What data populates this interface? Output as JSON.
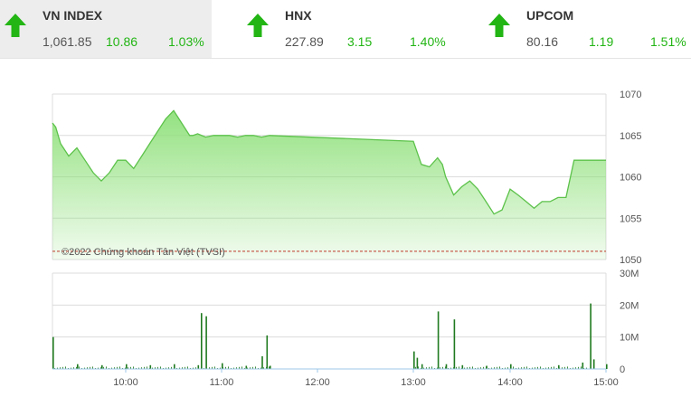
{
  "indices": [
    {
      "name": "VN INDEX",
      "price": "1,061.85",
      "change": "10.86",
      "percent": "1.03%"
    },
    {
      "name": "HNX",
      "price": "227.89",
      "change": "3.15",
      "percent": "1.40%"
    },
    {
      "name": "UPCOM",
      "price": "80.16",
      "change": "1.19",
      "percent": "1.51%"
    }
  ],
  "colors": {
    "up": "#22b514",
    "area_fill": "#8ee07a",
    "line": "#5cc24a",
    "reference": "#c0392b",
    "volume": "#1f7a1f"
  },
  "watermark": "©2022 Chứng khoán Tân Việt (TVSI)",
  "chart_data": [
    {
      "type": "area",
      "title": "",
      "x_ticks": [
        "10:00",
        "11:00",
        "12:00",
        "13:00",
        "14:00",
        "15:00"
      ],
      "y_ticks": [
        "1050",
        "1055",
        "1060",
        "1065",
        "1070"
      ],
      "ylim": [
        1050,
        1070
      ],
      "xlim": [
        "09:15",
        "15:00"
      ],
      "reference_value": 1051,
      "grid": true,
      "x": [
        "09:15",
        "09:17",
        "09:20",
        "09:25",
        "09:30",
        "09:35",
        "09:40",
        "09:45",
        "09:50",
        "09:55",
        "10:00",
        "10:05",
        "10:10",
        "10:15",
        "10:20",
        "10:25",
        "10:30",
        "10:35",
        "10:40",
        "10:42",
        "10:45",
        "10:50",
        "10:55",
        "11:00",
        "11:05",
        "11:10",
        "11:15",
        "11:20",
        "11:25",
        "11:30",
        "13:00",
        "13:05",
        "13:10",
        "13:15",
        "13:18",
        "13:20",
        "13:25",
        "13:30",
        "13:35",
        "13:40",
        "13:45",
        "13:50",
        "13:55",
        "14:00",
        "14:05",
        "14:10",
        "14:15",
        "14:20",
        "14:25",
        "14:30",
        "14:32",
        "14:35",
        "14:40",
        "14:45",
        "14:50",
        "14:55",
        "15:00"
      ],
      "values": [
        1066.5,
        1066.0,
        1064.0,
        1062.5,
        1063.5,
        1062.0,
        1060.5,
        1059.5,
        1060.5,
        1062.0,
        1062.0,
        1061.0,
        1062.5,
        1064.0,
        1065.5,
        1067.0,
        1068.0,
        1066.5,
        1065.0,
        1065.0,
        1065.2,
        1064.8,
        1065.0,
        1065.0,
        1065.0,
        1064.8,
        1065.0,
        1065.0,
        1064.8,
        1065.0,
        1064.3,
        1061.5,
        1061.2,
        1062.3,
        1061.5,
        1060.0,
        1057.8,
        1058.8,
        1059.5,
        1058.5,
        1057.0,
        1055.5,
        1056.0,
        1058.5,
        1057.8,
        1057.0,
        1056.2,
        1057.0,
        1057.0,
        1057.5,
        1057.5,
        1057.5,
        1062.0,
        1062.0,
        1062.0,
        1062.0,
        1062.0
      ]
    },
    {
      "type": "bar",
      "title": "",
      "y_ticks": [
        "0",
        "10M",
        "20M",
        "30M"
      ],
      "ylim": [
        0,
        30
      ],
      "unit": "M",
      "x": [
        "09:15",
        "09:30",
        "09:45",
        "10:00",
        "10:15",
        "10:30",
        "10:45",
        "10:47",
        "10:50",
        "11:00",
        "11:15",
        "11:25",
        "11:28",
        "11:30",
        "13:00",
        "13:02",
        "13:05",
        "13:15",
        "13:20",
        "13:25",
        "13:30",
        "13:45",
        "14:00",
        "14:30",
        "14:45",
        "14:50",
        "14:52",
        "15:00"
      ],
      "values": [
        10,
        1.5,
        1.2,
        1.5,
        1.2,
        1.5,
        1.2,
        17.5,
        16.5,
        1.8,
        1.0,
        4.0,
        10.5,
        1.0,
        5.5,
        3.5,
        1.5,
        18.0,
        1.5,
        15.5,
        1.2,
        1.0,
        1.5,
        1.2,
        2.0,
        20.5,
        3.0,
        1.5
      ]
    }
  ]
}
